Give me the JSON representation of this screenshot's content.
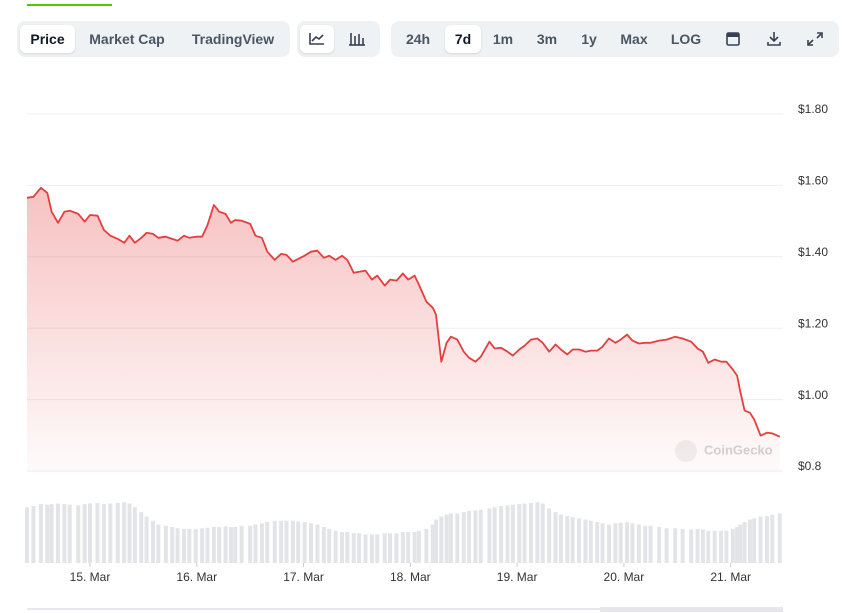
{
  "toolbar": {
    "views": [
      "Price",
      "Market Cap",
      "TradingView"
    ],
    "selected_view": 0,
    "ranges": [
      "24h",
      "7d",
      "1m",
      "3m",
      "1y",
      "Max",
      "LOG"
    ],
    "selected_range": 1
  },
  "chart_data": {
    "type": "line",
    "color": "#e53e3e",
    "watermark": "CoinGecko",
    "x": [
      14.41,
      14.47,
      14.54,
      14.6,
      14.64,
      14.7,
      14.76,
      14.81,
      14.89,
      14.95,
      15.0,
      15.07,
      15.13,
      15.19,
      15.26,
      15.32,
      15.37,
      15.42,
      15.48,
      15.53,
      15.59,
      15.64,
      15.71,
      15.77,
      15.82,
      15.88,
      15.93,
      15.99,
      16.05,
      16.1,
      16.16,
      16.21,
      16.27,
      16.32,
      16.36,
      16.42,
      16.5,
      16.55,
      16.61,
      16.66,
      16.73,
      16.79,
      16.84,
      16.9,
      16.95,
      17.01,
      17.07,
      17.13,
      17.19,
      17.24,
      17.3,
      17.36,
      17.41,
      17.47,
      17.52,
      17.58,
      17.64,
      17.69,
      17.76,
      17.81,
      17.87,
      17.93,
      17.98,
      18.04,
      18.08,
      18.15,
      18.21,
      18.24,
      18.29,
      18.34,
      18.38,
      18.44,
      18.5,
      18.55,
      18.61,
      18.66,
      18.74,
      18.79,
      18.85,
      18.91,
      18.96,
      19.02,
      19.07,
      19.13,
      19.19,
      19.24,
      19.3,
      19.36,
      19.41,
      19.47,
      19.52,
      19.58,
      19.64,
      19.69,
      19.75,
      19.8,
      19.86,
      19.92,
      19.97,
      20.03,
      20.08,
      20.14,
      20.2,
      20.25,
      20.33,
      20.4,
      20.48,
      20.55,
      20.63,
      20.69,
      20.74,
      20.79,
      20.85,
      20.91,
      20.96,
      21.02,
      21.06,
      21.09,
      21.13,
      21.18,
      21.22,
      21.28,
      21.34,
      21.39,
      21.46
    ],
    "values": [
      1.554,
      1.557,
      1.582,
      1.568,
      1.515,
      1.484,
      1.515,
      1.518,
      1.509,
      1.487,
      1.506,
      1.504,
      1.464,
      1.448,
      1.439,
      1.428,
      1.448,
      1.428,
      1.442,
      1.456,
      1.453,
      1.442,
      1.445,
      1.439,
      1.434,
      1.448,
      1.442,
      1.445,
      1.445,
      1.478,
      1.534,
      1.515,
      1.509,
      1.484,
      1.492,
      1.49,
      1.481,
      1.448,
      1.442,
      1.403,
      1.38,
      1.397,
      1.394,
      1.375,
      1.383,
      1.392,
      1.403,
      1.406,
      1.386,
      1.392,
      1.38,
      1.392,
      1.38,
      1.344,
      1.347,
      1.35,
      1.325,
      1.336,
      1.308,
      1.325,
      1.322,
      1.342,
      1.325,
      1.336,
      1.311,
      1.263,
      1.246,
      1.227,
      1.095,
      1.148,
      1.165,
      1.157,
      1.123,
      1.106,
      1.095,
      1.109,
      1.151,
      1.132,
      1.134,
      1.123,
      1.112,
      1.129,
      1.14,
      1.157,
      1.16,
      1.148,
      1.123,
      1.143,
      1.129,
      1.115,
      1.129,
      1.129,
      1.123,
      1.126,
      1.126,
      1.137,
      1.16,
      1.148,
      1.157,
      1.171,
      1.154,
      1.146,
      1.148,
      1.148,
      1.154,
      1.157,
      1.165,
      1.16,
      1.151,
      1.132,
      1.123,
      1.092,
      1.101,
      1.095,
      1.095,
      1.073,
      1.056,
      1.011,
      0.958,
      0.952,
      0.933,
      0.888,
      0.896,
      0.894,
      0.885
    ],
    "volume": {
      "color": "#e2e4e7",
      "ylim": [
        0,
        100
      ],
      "values": [
        90,
        92,
        95,
        94,
        95,
        96,
        95,
        94,
        93,
        95,
        96,
        97,
        95,
        96,
        97,
        98,
        96,
        90,
        82,
        75,
        68,
        62,
        60,
        58,
        56,
        55,
        55,
        55,
        56,
        57,
        58,
        58,
        59,
        58,
        58,
        60,
        60,
        62,
        64,
        66,
        68,
        68,
        68,
        68,
        67,
        66,
        64,
        62,
        58,
        55,
        52,
        50,
        50,
        48,
        48,
        46,
        46,
        46,
        48,
        48,
        48,
        50,
        50,
        50,
        52,
        55,
        62,
        70,
        75,
        78,
        80,
        80,
        82,
        84,
        85,
        86,
        88,
        90,
        92,
        93,
        94,
        95,
        96,
        97,
        98,
        96,
        88,
        82,
        78,
        76,
        74,
        72,
        70,
        68,
        66,
        64,
        62,
        64,
        65,
        66,
        64,
        62,
        60,
        60,
        58,
        56,
        56,
        55,
        54,
        55,
        54,
        52,
        52,
        52,
        52,
        55,
        58,
        62,
        66,
        70,
        72,
        75,
        76,
        78,
        80
      ]
    },
    "xlim": [
      14.41,
      21.49
    ],
    "xticks": [
      {
        "value": 15,
        "label": "15. Mar"
      },
      {
        "value": 16,
        "label": "16. Mar"
      },
      {
        "value": 17,
        "label": "17. Mar"
      },
      {
        "value": 18,
        "label": "18. Mar"
      },
      {
        "value": 19,
        "label": "19. Mar"
      },
      {
        "value": 20,
        "label": "20. Mar"
      },
      {
        "value": 21,
        "label": "21. Mar"
      }
    ],
    "ylim": [
      0.8,
      1.8
    ],
    "yticks": [
      {
        "value": 0.8,
        "label": "$0.8"
      },
      {
        "value": 1.0,
        "label": "$1.00"
      },
      {
        "value": 1.2,
        "label": "$1.20"
      },
      {
        "value": 1.4,
        "label": "$1.40"
      },
      {
        "value": 1.6,
        "label": "$1.60"
      },
      {
        "value": 1.8,
        "label": "$1.80"
      }
    ],
    "grid": true
  }
}
